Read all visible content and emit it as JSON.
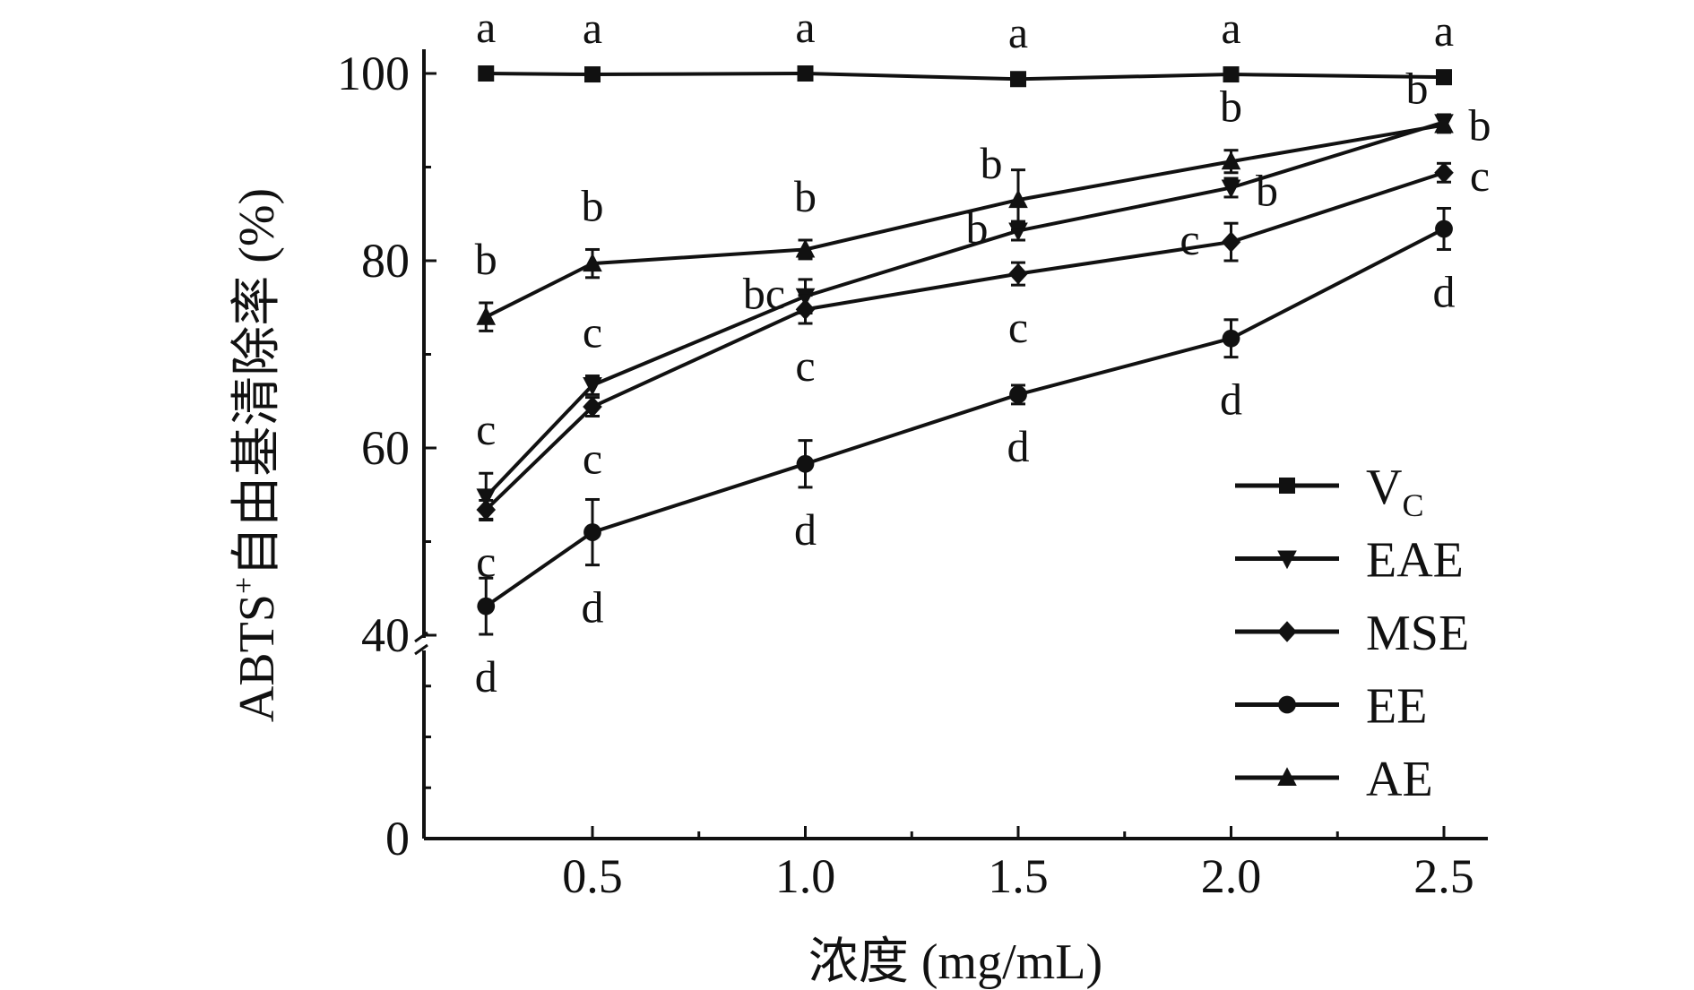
{
  "chart_data": {
    "type": "line",
    "title": "",
    "xlabel": "浓度 (mg/mL)",
    "ylabel": "ABTS⁺自由基清除率 (%)",
    "ylabel_parts": {
      "pre": "ABTS",
      "sup": "+",
      "post": "自由基清除率 (%)"
    },
    "x": [
      0.25,
      0.5,
      1.0,
      1.5,
      2.0,
      2.5
    ],
    "xlim": [
      0.1,
      2.6
    ],
    "ylim": [
      0,
      100
    ],
    "y_axis_break": 40,
    "xticks": [
      0.5,
      1.0,
      1.5,
      2.0,
      2.5
    ],
    "xtick_labels": [
      "0.5",
      "1.0",
      "1.5",
      "2.0",
      "2.5"
    ],
    "yticks": [
      0,
      40,
      60,
      80,
      100
    ],
    "ytick_labels": [
      "0",
      "40",
      "60",
      "80",
      "100"
    ],
    "grid": false,
    "legend_position": "bottom-right",
    "series": [
      {
        "name": "VC",
        "legend_main": "V",
        "legend_sub": "C",
        "marker": "square",
        "values": [
          100.0,
          99.9,
          100.0,
          99.4,
          99.9,
          99.6
        ],
        "errors": [
          0.3,
          0.3,
          0.3,
          0.3,
          0.3,
          0.3
        ],
        "letters": [
          "a",
          "a",
          "a",
          "a",
          "a",
          "a"
        ],
        "letter_pos": [
          "above",
          "above",
          "above",
          "above",
          "above",
          "above"
        ]
      },
      {
        "name": "EAE",
        "legend_main": "EAE",
        "legend_sub": "",
        "marker": "triangle-down",
        "values": [
          54.8,
          66.7,
          76.2,
          83.2,
          87.8,
          94.8
        ],
        "errors": [
          2.5,
          1.0,
          1.8,
          1.0,
          1.0,
          0.8
        ],
        "letters": [
          "c",
          "c",
          "bc",
          "b",
          "b",
          "b"
        ],
        "letter_pos": [
          "above",
          "above",
          "left",
          "left",
          "right",
          "right"
        ]
      },
      {
        "name": "MSE",
        "legend_main": "MSE",
        "legend_sub": "",
        "marker": "diamond",
        "values": [
          53.4,
          64.4,
          74.8,
          78.6,
          82.0,
          89.4
        ],
        "errors": [
          1.0,
          1.0,
          1.5,
          1.2,
          2.0,
          1.0
        ],
        "letters": [
          "c",
          "c",
          "c",
          "c",
          "c",
          "c"
        ],
        "letter_pos": [
          "below",
          "below",
          "below",
          "below",
          "left",
          "right"
        ]
      },
      {
        "name": "EE",
        "legend_main": "EE",
        "legend_sub": "",
        "marker": "circle",
        "values": [
          43.1,
          51.0,
          58.3,
          65.7,
          71.7,
          83.4
        ],
        "errors": [
          3.0,
          3.5,
          2.5,
          1.0,
          2.0,
          2.2
        ],
        "letters": [
          "d",
          "d",
          "d",
          "d",
          "d",
          "d"
        ],
        "letter_pos": [
          "below",
          "below",
          "below",
          "below",
          "below",
          "below"
        ]
      },
      {
        "name": "AE",
        "legend_main": "AE",
        "legend_sub": "",
        "marker": "triangle-up",
        "values": [
          74.0,
          79.7,
          81.2,
          86.5,
          90.6,
          94.5
        ],
        "errors": [
          1.5,
          1.5,
          1.0,
          3.2,
          1.2,
          0.8
        ],
        "letters": [
          "b",
          "b",
          "b",
          "b",
          "b",
          "b"
        ],
        "letter_pos": [
          "above",
          "above",
          "above",
          "above-left",
          "above",
          "above-left"
        ]
      }
    ]
  }
}
